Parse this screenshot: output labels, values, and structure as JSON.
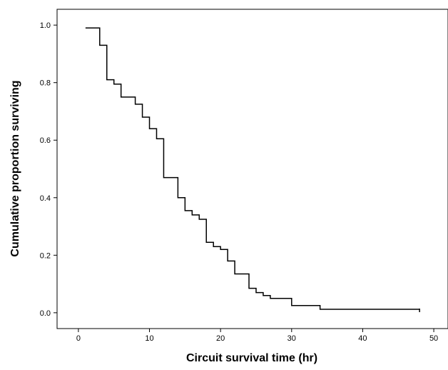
{
  "chart_data": {
    "type": "line",
    "subtype": "kaplan-meier-step",
    "title": "",
    "xlabel": "Circuit survival time (hr)",
    "ylabel": "Cumulative proportion surviving",
    "xlim": [
      -3,
      52
    ],
    "ylim": [
      -0.055,
      1.055
    ],
    "xticks": [
      0,
      10,
      20,
      30,
      40,
      50
    ],
    "xtick_labels": [
      "0",
      "10",
      "20",
      "30",
      "40",
      "50"
    ],
    "yticks": [
      0.0,
      0.2,
      0.4,
      0.6,
      0.8,
      1.0
    ],
    "ytick_labels": [
      "0.0",
      "0.2",
      "0.4",
      "0.6",
      "0.8",
      "1.0"
    ],
    "grid": false,
    "legend": "none",
    "line_color": "#000000",
    "series": [
      {
        "x": [
          1,
          3,
          4,
          5,
          6,
          8,
          9,
          10,
          11,
          12,
          14,
          15,
          16,
          17,
          18,
          19,
          20,
          21,
          22,
          24,
          25,
          26,
          27,
          30,
          34,
          48
        ],
        "y": [
          0.99,
          0.93,
          0.81,
          0.795,
          0.75,
          0.725,
          0.68,
          0.64,
          0.605,
          0.47,
          0.4,
          0.355,
          0.34,
          0.325,
          0.245,
          0.23,
          0.22,
          0.18,
          0.135,
          0.085,
          0.07,
          0.06,
          0.05,
          0.025,
          0.012,
          0.012
        ]
      }
    ]
  }
}
